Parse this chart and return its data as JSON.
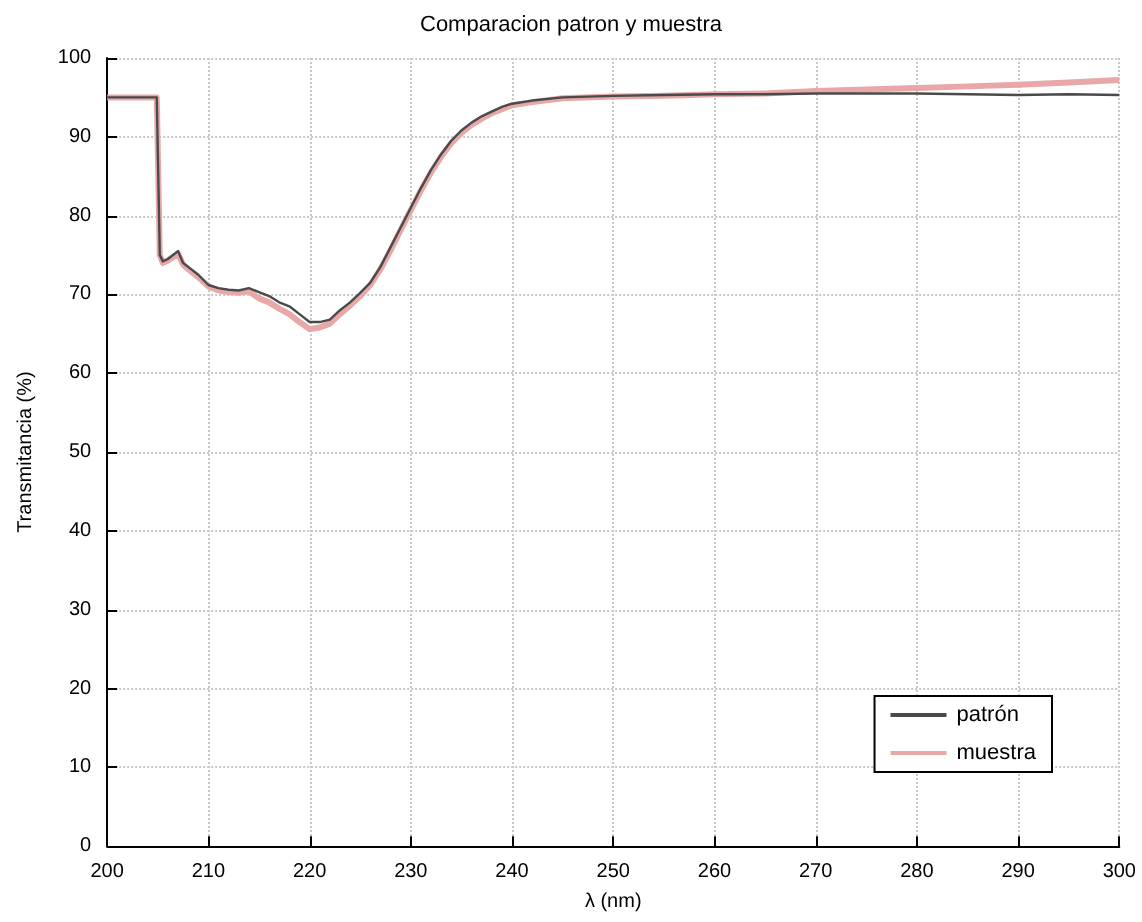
{
  "chart_data": {
    "type": "line",
    "title": "Comparacion patron y muestra",
    "xlabel": "λ (nm)",
    "ylabel": "Transmitancia (%)",
    "xlim": [
      200,
      300
    ],
    "xticks": [
      200,
      210,
      220,
      230,
      240,
      250,
      260,
      270,
      280,
      290,
      300
    ],
    "ylim": [
      0,
      100
    ],
    "yticks": [
      0,
      10,
      20,
      30,
      40,
      50,
      60,
      70,
      80,
      90,
      100
    ],
    "grid": true,
    "legend": "bottom right",
    "marker": "none",
    "line_style": "solid",
    "series": [
      {
        "name": "patrón",
        "color": "#4a4a4a",
        "x": [
          200,
          204.9,
          205.2,
          205.5,
          206,
          207,
          207.5,
          208,
          209,
          210,
          211,
          212,
          213,
          214,
          215,
          216,
          217,
          218,
          219,
          220,
          221,
          222,
          223,
          224,
          225,
          226,
          227,
          228,
          229,
          230,
          231,
          232,
          233,
          234,
          235,
          236,
          237,
          238,
          239,
          240,
          242,
          245,
          250,
          255,
          260,
          265,
          270,
          275,
          280,
          285,
          290,
          295,
          300
        ],
        "values": [
          95,
          95,
          75,
          74.2,
          74.5,
          75.5,
          74,
          73.5,
          72.5,
          71.2,
          70.8,
          70.6,
          70.5,
          70.8,
          70.3,
          69.8,
          69,
          68.5,
          67.5,
          66.5,
          66.5,
          66.8,
          68,
          69,
          70.2,
          71.5,
          73.5,
          76,
          78.5,
          81,
          83.5,
          85.8,
          87.8,
          89.5,
          90.8,
          91.8,
          92.6,
          93.2,
          93.8,
          94.2,
          94.6,
          95,
          95.2,
          95.3,
          95.4,
          95.4,
          95.5,
          95.5,
          95.5,
          95.4,
          95.3,
          95.4,
          95.3
        ]
      },
      {
        "name": "muestra",
        "color": "#e8a8a8",
        "x": [
          200,
          204.9,
          205.2,
          205.5,
          206,
          207,
          207.5,
          208,
          209,
          210,
          211,
          212,
          213,
          214,
          215,
          216,
          217,
          218,
          219,
          220,
          221,
          222,
          223,
          224,
          225,
          226,
          227,
          228,
          229,
          230,
          231,
          232,
          233,
          234,
          235,
          236,
          237,
          238,
          239,
          240,
          242,
          245,
          250,
          255,
          260,
          265,
          270,
          275,
          280,
          285,
          290,
          295,
          300
        ],
        "values": [
          95,
          95,
          75,
          74,
          74.3,
          75.2,
          73.8,
          73.2,
          72.2,
          71,
          70.5,
          70.3,
          70.2,
          70.4,
          69.5,
          69,
          68.2,
          67.5,
          66.5,
          65.6,
          65.8,
          66.3,
          67.5,
          68.6,
          69.8,
          71.2,
          73.2,
          75.6,
          78.2,
          80.7,
          83.2,
          85.5,
          87.5,
          89.2,
          90.5,
          91.5,
          92.3,
          93,
          93.5,
          94,
          94.4,
          94.9,
          95.1,
          95.2,
          95.4,
          95.5,
          95.8,
          96,
          96.2,
          96.4,
          96.6,
          96.9,
          97.2
        ]
      }
    ]
  }
}
